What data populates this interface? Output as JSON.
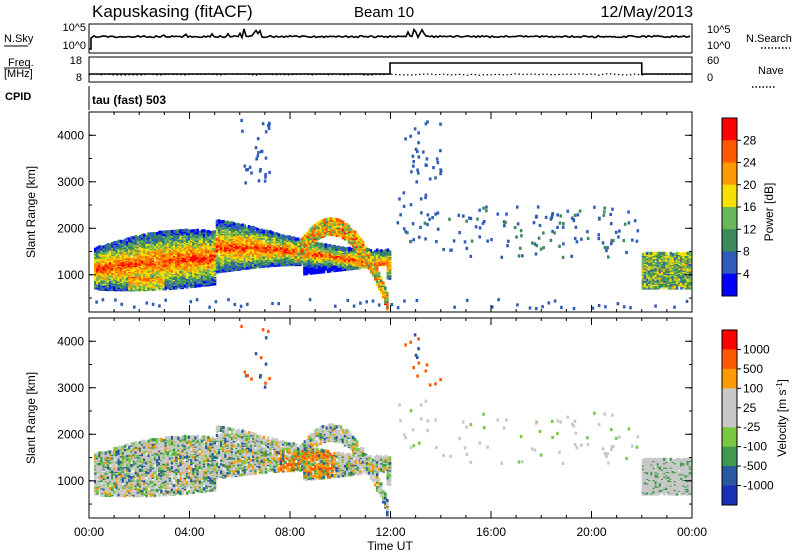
{
  "header": {
    "station": "Kapuskasing (fitACF)",
    "beam": "Beam 10",
    "date": "12/May/2013"
  },
  "strip1": {
    "left_label": "N.Sky",
    "right_label": "N.Search",
    "left_ticks": [
      "10^5",
      "10^0"
    ],
    "right_ticks": [
      "10^5",
      "10^0"
    ]
  },
  "strip2": {
    "left_label": "Freq.",
    "left_unit": "[MHz]",
    "right_label": "Nave",
    "left_ticks": [
      "18",
      "8"
    ],
    "right_ticks": [
      "60",
      "0"
    ]
  },
  "cpid": {
    "label": "CPID",
    "value": "tau (fast) 503"
  },
  "colors": {
    "power": [
      "#0000ff",
      "#2e5cb8",
      "#3a8a5a",
      "#6ab85a",
      "#f7e000",
      "#ff9a00",
      "#ff5a00",
      "#ff0000"
    ],
    "velocity": [
      "#1a2fb8",
      "#2a58a0",
      "#3f9a4c",
      "#7ac842",
      "#c8c8c8",
      "#c8c8c8",
      "#ff9a00",
      "#ff5a00",
      "#ff0000"
    ],
    "noise": "#2e5cb8",
    "gray": "#c8c8c8"
  },
  "x_axis": {
    "label": "Time UT",
    "ticks": [
      "00:00",
      "04:00",
      "08:00",
      "12:00",
      "16:00",
      "20:00",
      "00:00"
    ]
  },
  "chart_data": [
    {
      "type": "heatmap",
      "panel": "power",
      "ylabel": "Slant Range [km]",
      "yticks": [
        "1000",
        "2000",
        "3000",
        "4000"
      ],
      "ylim": [
        200,
        4500
      ],
      "xlim_hours": [
        0,
        24
      ],
      "colorbar_label": "Power [dB]",
      "colorbar_ticks": [
        "4",
        "8",
        "12",
        "16",
        "20",
        "24",
        "28"
      ],
      "colorbar_range": [
        0,
        32
      ],
      "regions": [
        {
          "t": [
            0.0,
            12.0
          ],
          "r": [
            700,
            1800
          ],
          "level": "high"
        },
        {
          "t": [
            7.0,
            10.5
          ],
          "r": [
            900,
            2300
          ],
          "level": "high"
        },
        {
          "t": [
            22.0,
            24.0
          ],
          "r": [
            700,
            1500
          ],
          "level": "medium"
        },
        {
          "t": [
            12.0,
            22.0
          ],
          "r": [
            1400,
            2700
          ],
          "level": "sparse"
        }
      ]
    },
    {
      "type": "heatmap",
      "panel": "velocity",
      "ylabel": "Slant Range [km]",
      "yticks": [
        "1000",
        "2000",
        "3000",
        "4000"
      ],
      "ylim": [
        200,
        4500
      ],
      "xlim_hours": [
        0,
        24
      ],
      "colorbar_label": "Velocity [m s^-1]",
      "colorbar_ticks": [
        "1000",
        "500",
        "100",
        "25",
        "-25",
        "-100",
        "-500",
        "-1000"
      ],
      "regions": [
        {
          "t": [
            0.0,
            12.0
          ],
          "r": [
            700,
            1800
          ],
          "level": "mixed"
        },
        {
          "t": [
            7.0,
            10.5
          ],
          "r": [
            900,
            2300
          ],
          "level": "mixed"
        },
        {
          "t": [
            22.0,
            24.0
          ],
          "r": [
            700,
            1500
          ],
          "level": "low"
        },
        {
          "t": [
            12.0,
            22.0
          ],
          "r": [
            1400,
            2700
          ],
          "level": "sparse"
        }
      ]
    }
  ]
}
